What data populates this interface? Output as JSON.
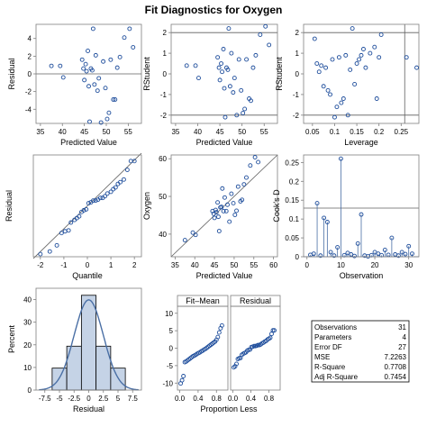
{
  "title": "Fit Diagnostics for Oxygen",
  "colors": {
    "points": "#1f4e9c",
    "line": "#4a6fa5",
    "bar_fill": "#c5d3e6",
    "frame": "#7f7f7f",
    "ref": "#5f5f5f"
  },
  "chart_data": [
    {
      "id": "residual_vs_predicted",
      "type": "scatter",
      "xlabel": "Predicted Value",
      "ylabel": "Residual",
      "xlim": [
        34,
        58
      ],
      "ylim": [
        -5.6,
        5.6
      ],
      "xticks": [
        35,
        40,
        45,
        50,
        55
      ],
      "yticks": [
        -4,
        -2,
        0,
        2,
        4
      ],
      "reference_y": [
        0
      ],
      "x": [
        37.5,
        39.5,
        40.2,
        44.5,
        44.8,
        45.0,
        45.3,
        45.5,
        45.8,
        46.0,
        46.2,
        46.5,
        46.8,
        47.0,
        47.3,
        47.6,
        48.0,
        48.3,
        48.8,
        49.3,
        49.8,
        50.2,
        50.6,
        51.0,
        51.6,
        52.0,
        52.5,
        53.1,
        54.1,
        55.3,
        56.1
      ],
      "y": [
        0.9,
        0.9,
        -0.4,
        1.6,
        0.6,
        -0.7,
        1.1,
        0.3,
        2.6,
        -1.4,
        -5.4,
        0.6,
        0.4,
        5.1,
        -1.2,
        2.1,
        -1.9,
        -0.5,
        -5.5,
        1.4,
        -1.6,
        -5.1,
        -4.4,
        1.6,
        -2.9,
        -2.9,
        0.7,
        1.9,
        4.1,
        5.1,
        3.0
      ]
    },
    {
      "id": "rstudent_vs_predicted",
      "type": "scatter",
      "xlabel": "Predicted Value",
      "ylabel": "RStudent",
      "xlim": [
        34,
        58
      ],
      "ylim": [
        -2.4,
        2.4
      ],
      "xticks": [
        35,
        40,
        45,
        50,
        55
      ],
      "yticks": [
        -2,
        -1,
        0,
        1,
        2
      ],
      "reference_y": [
        -2,
        2
      ],
      "x": [
        37.5,
        39.5,
        40.2,
        44.5,
        44.8,
        45.0,
        45.3,
        45.5,
        45.8,
        46.0,
        46.2,
        46.5,
        46.8,
        47.0,
        47.3,
        47.6,
        48.0,
        48.3,
        48.8,
        49.3,
        49.8,
        50.2,
        50.6,
        51.0,
        51.6,
        52.0,
        52.5,
        53.1,
        54.1,
        55.3,
        56.1
      ],
      "y": [
        0.4,
        0.4,
        -0.2,
        0.8,
        0.3,
        -0.3,
        0.5,
        0.1,
        1.2,
        -0.7,
        -2.1,
        0.3,
        0.2,
        2.2,
        -0.6,
        1.0,
        -0.9,
        -0.2,
        -2.0,
        0.7,
        -0.8,
        -1.9,
        -1.7,
        0.7,
        -1.2,
        -1.3,
        0.3,
        0.9,
        1.9,
        2.3,
        1.4
      ]
    },
    {
      "id": "rstudent_vs_leverage",
      "type": "scatter",
      "xlabel": "Leverage",
      "ylabel": "RStudent",
      "xlim": [
        0.03,
        0.29
      ],
      "ylim": [
        -2.4,
        2.4
      ],
      "xticks": [
        0.05,
        0.1,
        0.15,
        0.2,
        0.25
      ],
      "yticks": [
        -2,
        -1,
        0,
        1,
        2
      ],
      "reference_y": [
        -2,
        2
      ],
      "reference_x": [
        0.258
      ],
      "x": [
        0.055,
        0.06,
        0.065,
        0.07,
        0.075,
        0.08,
        0.085,
        0.09,
        0.095,
        0.1,
        0.105,
        0.11,
        0.115,
        0.12,
        0.125,
        0.13,
        0.135,
        0.14,
        0.145,
        0.15,
        0.155,
        0.16,
        0.165,
        0.17,
        0.18,
        0.19,
        0.195,
        0.2,
        0.205,
        0.262,
        0.285
      ],
      "y": [
        1.7,
        0.5,
        0.1,
        0.4,
        -0.6,
        0.3,
        -0.8,
        -1.0,
        0.7,
        -2.1,
        -1.6,
        0.8,
        -1.4,
        -1.2,
        0.9,
        -2.0,
        0.2,
        2.2,
        -0.5,
        0.5,
        0.7,
        0.9,
        1.2,
        0.3,
        1.0,
        1.3,
        -1.2,
        0.8,
        1.9,
        0.8,
        0.3
      ]
    },
    {
      "id": "qq_plot",
      "type": "scatter",
      "xlabel": "Quantile",
      "ylabel": "Residual",
      "xlim": [
        -2.3,
        2.3
      ],
      "ylim": [
        -5.8,
        5.8
      ],
      "xticks": [
        -2,
        -1,
        0,
        1,
        2
      ],
      "yticks": [],
      "reference_line": [
        [
          -2.3,
          -6.0
        ],
        [
          2.3,
          6.0
        ]
      ],
      "x": [
        -2.0,
        -1.6,
        -1.3,
        -1.1,
        -0.95,
        -0.8,
        -0.7,
        -0.55,
        -0.45,
        -0.35,
        -0.25,
        -0.15,
        -0.05,
        0.05,
        0.15,
        0.25,
        0.35,
        0.45,
        0.55,
        0.65,
        0.75,
        0.85,
        1.0,
        1.1,
        1.2,
        1.3,
        1.4,
        1.55,
        1.7,
        1.85,
        2.0
      ],
      "y": [
        -5.5,
        -5.2,
        -4.5,
        -3.1,
        -2.9,
        -2.8,
        -1.9,
        -1.6,
        -1.4,
        -1.2,
        -0.7,
        -0.5,
        -0.4,
        0.3,
        0.4,
        0.6,
        0.6,
        0.7,
        0.9,
        0.9,
        1.1,
        1.4,
        1.6,
        1.9,
        2.1,
        2.5,
        2.7,
        3.0,
        4.1,
        5.1,
        5.1
      ]
    },
    {
      "id": "observed_vs_predicted",
      "type": "scatter",
      "xlabel": "Predicted Value",
      "ylabel": "Oxygen",
      "xlim": [
        34,
        61
      ],
      "ylim": [
        34,
        61
      ],
      "xticks": [
        35,
        40,
        45,
        50,
        55,
        60
      ],
      "yticks": [
        40,
        50,
        60
      ],
      "reference_line": [
        [
          34,
          34
        ],
        [
          61,
          61
        ]
      ],
      "x": [
        37.5,
        39.5,
        40.2,
        44.5,
        44.8,
        45.0,
        45.3,
        45.5,
        45.8,
        46.0,
        46.2,
        46.5,
        46.8,
        47.0,
        47.3,
        47.6,
        48.0,
        48.3,
        48.8,
        49.3,
        49.8,
        50.2,
        50.6,
        51.0,
        51.6,
        52.0,
        52.5,
        53.1,
        54.1,
        55.3,
        56.1
      ],
      "y": [
        38.4,
        40.4,
        39.8,
        46.1,
        45.4,
        44.3,
        46.4,
        45.8,
        48.4,
        44.6,
        40.8,
        47.1,
        47.2,
        52.1,
        46.1,
        49.7,
        46.1,
        47.8,
        43.3,
        50.7,
        48.2,
        45.1,
        46.2,
        52.6,
        48.7,
        49.1,
        53.2,
        55.0,
        58.2,
        60.4,
        59.1
      ]
    },
    {
      "id": "cooks_d",
      "type": "bar",
      "xlabel": "Observation",
      "ylabel": "Cook's D",
      "xlim": [
        -1,
        33
      ],
      "ylim": [
        0,
        0.27
      ],
      "xticks": [
        0,
        10,
        20,
        30
      ],
      "yticks": [
        0.0,
        0.05,
        0.1,
        0.15,
        0.2,
        0.25
      ],
      "reference_y": [
        0.129
      ],
      "x": [
        1,
        2,
        3,
        4,
        5,
        6,
        7,
        8,
        9,
        10,
        11,
        12,
        13,
        14,
        15,
        16,
        17,
        18,
        19,
        20,
        21,
        22,
        23,
        24,
        25,
        26,
        27,
        28,
        29,
        30,
        31
      ],
      "values": [
        0.005,
        0.008,
        0.142,
        0.003,
        0.103,
        0.092,
        0.012,
        0.003,
        0.025,
        0.26,
        0.004,
        0.01,
        0.006,
        0.002,
        0.035,
        0.112,
        0.003,
        0.001,
        0.004,
        0.012,
        0.008,
        0.004,
        0.018,
        0.005,
        0.05,
        0.006,
        0.003,
        0.012,
        0.007,
        0.028,
        0.008
      ]
    },
    {
      "id": "residual_histogram",
      "type": "bar",
      "xlabel": "Residual",
      "ylabel": "Percent",
      "xlim": [
        -9,
        9
      ],
      "ylim": [
        0,
        45
      ],
      "xticks": [
        -7.5,
        -5,
        -2.5,
        0,
        2.5,
        5,
        7.5
      ],
      "yticks": [
        0,
        10,
        20,
        30,
        40
      ],
      "bin_edges": [
        -6.25,
        -3.75,
        -1.25,
        1.25,
        3.75,
        6.25
      ],
      "values": [
        9.7,
        19.4,
        41.9,
        19.4,
        9.7
      ],
      "normal_curve": {
        "mean": 0,
        "sd": 2.5
      }
    },
    {
      "id": "residual_fit_spread",
      "type": "scatter",
      "panels": [
        "Fit–Mean",
        "Residual"
      ],
      "xlabel": "Proportion Less",
      "xlim": [
        -0.05,
        1.05
      ],
      "ylim": [
        -12,
        12
      ],
      "xticks": [
        0.0,
        0.4,
        0.8
      ],
      "yticks": [
        -10,
        -5,
        0,
        5,
        10
      ],
      "fit_mean": {
        "x": [
          0.02,
          0.05,
          0.08,
          0.11,
          0.14,
          0.17,
          0.2,
          0.23,
          0.26,
          0.29,
          0.32,
          0.35,
          0.38,
          0.41,
          0.44,
          0.47,
          0.5,
          0.53,
          0.56,
          0.59,
          0.62,
          0.65,
          0.68,
          0.71,
          0.74,
          0.77,
          0.8,
          0.83,
          0.86,
          0.89,
          0.92
        ],
        "y": [
          -10.1,
          -9.2,
          -8.0,
          -4.0,
          -3.8,
          -3.5,
          -3.2,
          -2.9,
          -2.6,
          -2.3,
          -2.1,
          -1.9,
          -1.6,
          -1.4,
          -1.2,
          -0.9,
          -0.7,
          -0.4,
          -0.2,
          0.1,
          0.4,
          0.7,
          1.0,
          1.3,
          1.6,
          1.9,
          2.4,
          3.2,
          4.5,
          5.7,
          6.5
        ]
      },
      "residual": {
        "x": [
          0.02,
          0.05,
          0.08,
          0.11,
          0.14,
          0.17,
          0.2,
          0.23,
          0.26,
          0.29,
          0.32,
          0.35,
          0.38,
          0.41,
          0.44,
          0.47,
          0.5,
          0.53,
          0.56,
          0.59,
          0.62,
          0.65,
          0.68,
          0.71,
          0.74,
          0.77,
          0.8,
          0.83,
          0.86,
          0.89,
          0.92
        ],
        "y": [
          -5.5,
          -5.2,
          -4.5,
          -3.1,
          -2.9,
          -2.8,
          -1.9,
          -1.6,
          -1.4,
          -1.2,
          -0.7,
          -0.5,
          -0.4,
          0.3,
          0.4,
          0.6,
          0.6,
          0.7,
          0.9,
          0.9,
          1.1,
          1.4,
          1.6,
          1.9,
          2.1,
          2.5,
          2.7,
          3.0,
          4.1,
          5.1,
          5.1
        ]
      }
    },
    {
      "id": "fit_statistics",
      "type": "table",
      "rows": [
        {
          "label": "Observations",
          "value": "31"
        },
        {
          "label": "Parameters",
          "value": "4"
        },
        {
          "label": "Error DF",
          "value": "27"
        },
        {
          "label": "MSE",
          "value": "7.2263"
        },
        {
          "label": "R-Square",
          "value": "0.7708"
        },
        {
          "label": "Adj R-Square",
          "value": "0.7454"
        }
      ]
    }
  ]
}
